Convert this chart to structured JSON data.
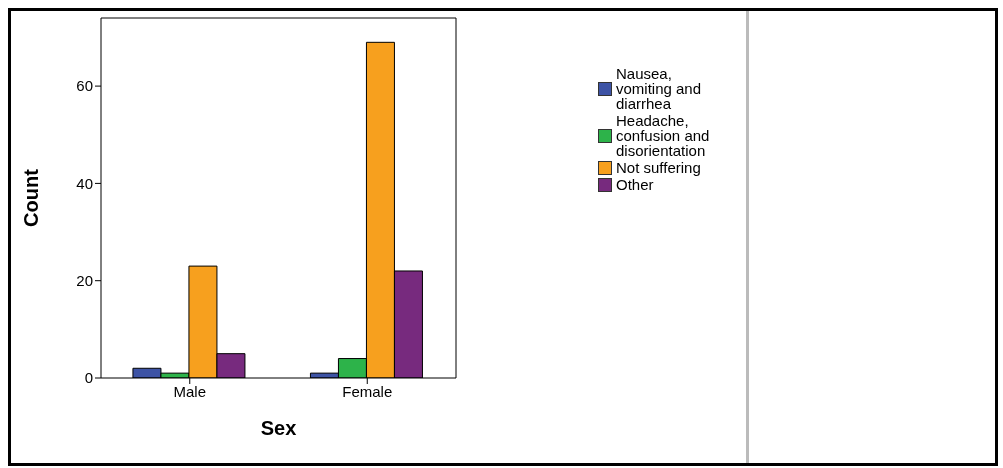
{
  "chart_data": {
    "type": "bar",
    "xlabel": "Sex",
    "ylabel": "Count",
    "categories": [
      "Male",
      "Female"
    ],
    "series": [
      {
        "name": "Nausea, vomiting and diarrhea",
        "color": "#3d53a5",
        "values": [
          2,
          1
        ]
      },
      {
        "name": "Headache, confusion and disorientation",
        "color": "#2db34a",
        "values": [
          1,
          4
        ]
      },
      {
        "name": "Not suffering",
        "color": "#f7a01e",
        "values": [
          23,
          69
        ]
      },
      {
        "name": "Other",
        "color": "#772a7e",
        "values": [
          5,
          22
        ]
      }
    ],
    "ylim": [
      0,
      74
    ],
    "yticks": [
      0,
      20,
      40,
      60
    ],
    "legend": "right"
  }
}
